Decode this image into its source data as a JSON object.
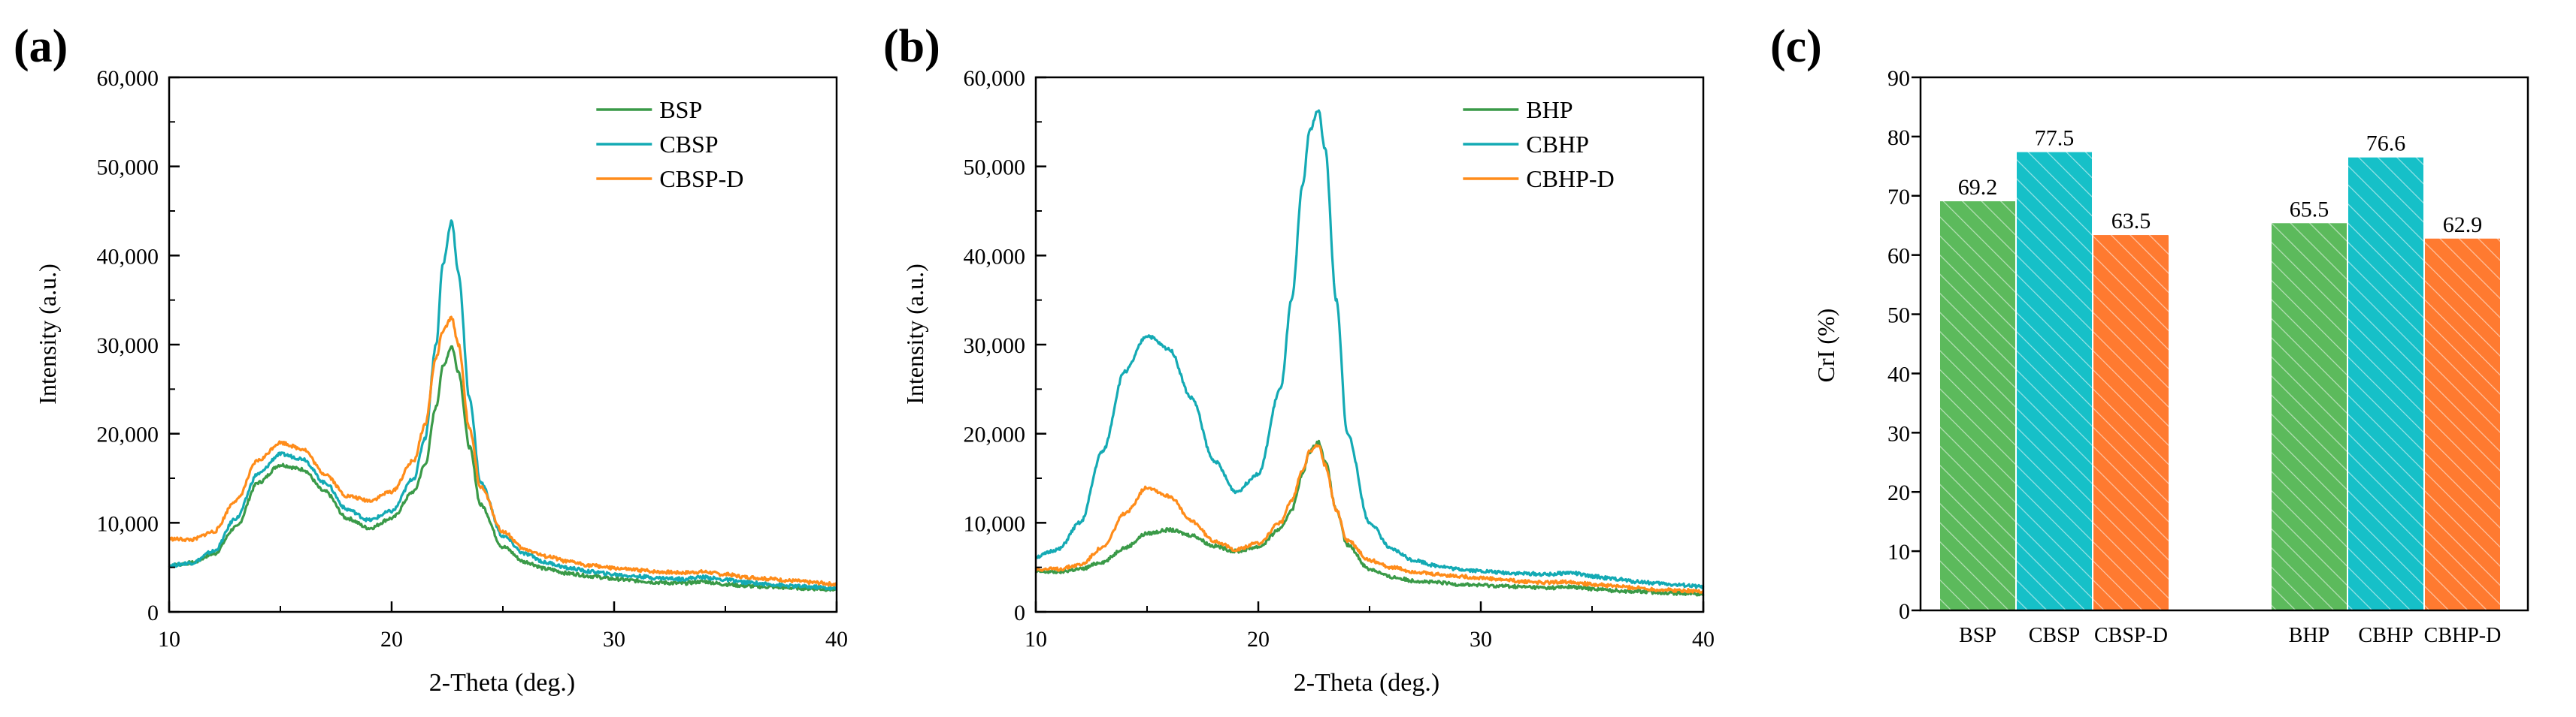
{
  "chart_data": [
    {
      "panel": "(a)",
      "type": "line",
      "xlabel": "2-Theta (deg.)",
      "ylabel": "Intensity (a.u.)",
      "xlim": [
        10,
        40
      ],
      "ylim": [
        0,
        60000
      ],
      "xticks": [
        10,
        20,
        30,
        40
      ],
      "yticks": [
        0,
        10000,
        20000,
        30000,
        40000,
        50000,
        60000
      ],
      "xtick_labels": [
        "10",
        "20",
        "30",
        "40"
      ],
      "ytick_labels": [
        "0",
        "10,000",
        "20,000",
        "30,000",
        "40,000",
        "50,000",
        "60,000"
      ],
      "legend_position": "top-right",
      "series": [
        {
          "name": "BSP",
          "color": "#3a9a48",
          "x": [
            10,
            11,
            12,
            13,
            14,
            15,
            16,
            17,
            18,
            19,
            20,
            21,
            21.5,
            22,
            22.3,
            22.7,
            23,
            23.5,
            24,
            25,
            26,
            27,
            28,
            29,
            30,
            31,
            32,
            33,
            34,
            35,
            36,
            37,
            38,
            39,
            40
          ],
          "y": [
            5200,
            5500,
            6500,
            9500,
            14500,
            16500,
            16000,
            13500,
            10500,
            9400,
            10500,
            13500,
            16500,
            23000,
            27500,
            29800,
            27000,
            18500,
            12000,
            7300,
            5600,
            4800,
            4300,
            4000,
            3700,
            3500,
            3300,
            3200,
            3400,
            3100,
            2900,
            2800,
            2700,
            2600,
            2500
          ]
        },
        {
          "name": "CBSP",
          "color": "#14aab4",
          "x": [
            10,
            11,
            12,
            13,
            14,
            15,
            16,
            17,
            18,
            19,
            20,
            21,
            21.5,
            22,
            22.3,
            22.7,
            23,
            23.5,
            24,
            25,
            26,
            27,
            28,
            29,
            30,
            31,
            32,
            33,
            34,
            35,
            36,
            37,
            38,
            39,
            40
          ],
          "y": [
            5200,
            5500,
            6800,
            10500,
            15500,
            17700,
            17200,
            14500,
            11500,
            10300,
            11300,
            15000,
            19500,
            30000,
            39000,
            43900,
            38000,
            24000,
            14500,
            8500,
            6500,
            5500,
            4900,
            4500,
            4200,
            4000,
            3800,
            3700,
            3900,
            3600,
            3300,
            3100,
            2900,
            2800,
            2600
          ]
        },
        {
          "name": "CBSP-D",
          "color": "#ff8c1a",
          "x": [
            10,
            11,
            12,
            13,
            14,
            15,
            16,
            17,
            18,
            19,
            20,
            21,
            21.5,
            22,
            22.3,
            22.7,
            23,
            23.5,
            24,
            25,
            26,
            27,
            28,
            29,
            30,
            31,
            32,
            33,
            34,
            35,
            36,
            37,
            38,
            39,
            40
          ],
          "y": [
            8200,
            8100,
            9000,
            12500,
            17000,
            19000,
            18300,
            15500,
            13000,
            12500,
            13500,
            17000,
            21000,
            28500,
            31500,
            33000,
            30000,
            20500,
            14000,
            9000,
            7000,
            6200,
            5600,
            5200,
            4900,
            4700,
            4500,
            4400,
            4500,
            4200,
            3900,
            3700,
            3500,
            3300,
            3100
          ]
        }
      ]
    },
    {
      "panel": "(b)",
      "type": "line",
      "xlabel": "2-Theta (deg.)",
      "ylabel": "Intensity (a.u.)",
      "xlim": [
        10,
        40
      ],
      "ylim": [
        0,
        60000
      ],
      "xticks": [
        10,
        20,
        30,
        40
      ],
      "yticks": [
        0,
        10000,
        20000,
        30000,
        40000,
        50000,
        60000
      ],
      "xtick_labels": [
        "10",
        "20",
        "30",
        "40"
      ],
      "ytick_labels": [
        "0",
        "10,000",
        "20,000",
        "30,000",
        "40,000",
        "50,000",
        "60,000"
      ],
      "legend_position": "top-right",
      "series": [
        {
          "name": "BHP",
          "color": "#3a9a48",
          "x": [
            10,
            11,
            12,
            13,
            14,
            15,
            16,
            17,
            18,
            19,
            20,
            21,
            21.5,
            22,
            22.3,
            22.7,
            23,
            23.5,
            24,
            25,
            26,
            27,
            28,
            29,
            30,
            31,
            32,
            33,
            34,
            35,
            36,
            37,
            38,
            39,
            40
          ],
          "y": [
            4500,
            4500,
            4800,
            5600,
            7200,
            8800,
            9200,
            8600,
            7400,
            6800,
            7300,
            9300,
            11500,
            15500,
            18000,
            19100,
            17000,
            11500,
            7500,
            4800,
            3900,
            3500,
            3300,
            3100,
            3000,
            2900,
            2800,
            2700,
            2800,
            2600,
            2400,
            2300,
            2200,
            2100,
            2000
          ]
        },
        {
          "name": "CBHP",
          "color": "#14aab4",
          "x": [
            10,
            11,
            12,
            13,
            14,
            15,
            16,
            17,
            18,
            19,
            20,
            21,
            21.5,
            22,
            22.3,
            22.7,
            23,
            23.5,
            24,
            25,
            26,
            27,
            28,
            29,
            30,
            31,
            32,
            33,
            34,
            35,
            36,
            37,
            38,
            39,
            40
          ],
          "y": [
            6200,
            7000,
            10000,
            18000,
            27000,
            31000,
            29500,
            24000,
            17000,
            13500,
            15500,
            25000,
            35000,
            48000,
            54000,
            56300,
            52000,
            35000,
            20000,
            10000,
            7000,
            5800,
            5200,
            4800,
            4600,
            4400,
            4300,
            4200,
            4400,
            4000,
            3700,
            3400,
            3200,
            3000,
            2800
          ]
        },
        {
          "name": "CBHP-D",
          "color": "#ff8c1a",
          "x": [
            10,
            11,
            12,
            13,
            14,
            15,
            16,
            17,
            18,
            19,
            20,
            21,
            21.5,
            22,
            22.3,
            22.7,
            23,
            23.5,
            24,
            25,
            26,
            27,
            28,
            29,
            30,
            31,
            32,
            33,
            34,
            35,
            36,
            37,
            38,
            39,
            40
          ],
          "y": [
            4800,
            4800,
            5300,
            7200,
            11000,
            14000,
            13000,
            10200,
            8000,
            7000,
            7700,
            10000,
            12500,
            16000,
            18000,
            18700,
            16500,
            11500,
            8000,
            5800,
            5000,
            4500,
            4200,
            4000,
            3800,
            3600,
            3400,
            3300,
            3400,
            3100,
            2900,
            2700,
            2500,
            2400,
            2300
          ]
        }
      ]
    },
    {
      "panel": "(c)",
      "type": "bar",
      "ylabel": "CrI (%)",
      "ylim": [
        0,
        90
      ],
      "yticks": [
        0,
        10,
        20,
        30,
        40,
        50,
        60,
        70,
        80,
        90
      ],
      "ytick_labels": [
        "0",
        "10",
        "20",
        "30",
        "40",
        "50",
        "60",
        "70",
        "80",
        "90"
      ],
      "categories": [
        "BSP",
        "CBSP",
        "CBSP-D",
        "BHP",
        "CBHP",
        "CBHP-D"
      ],
      "values": [
        69.2,
        77.5,
        63.5,
        65.5,
        76.6,
        62.9
      ],
      "value_labels": [
        "69.2",
        "77.5",
        "63.5",
        "65.5",
        "76.6",
        "62.9"
      ],
      "colors": [
        "#5cba5c",
        "#16c0c8",
        "#ff7a30",
        "#5cba5c",
        "#16c0c8",
        "#ff7a30"
      ],
      "groups": [
        [
          0,
          1,
          2
        ],
        [
          3,
          4,
          5
        ]
      ],
      "pattern": "hatched"
    }
  ]
}
